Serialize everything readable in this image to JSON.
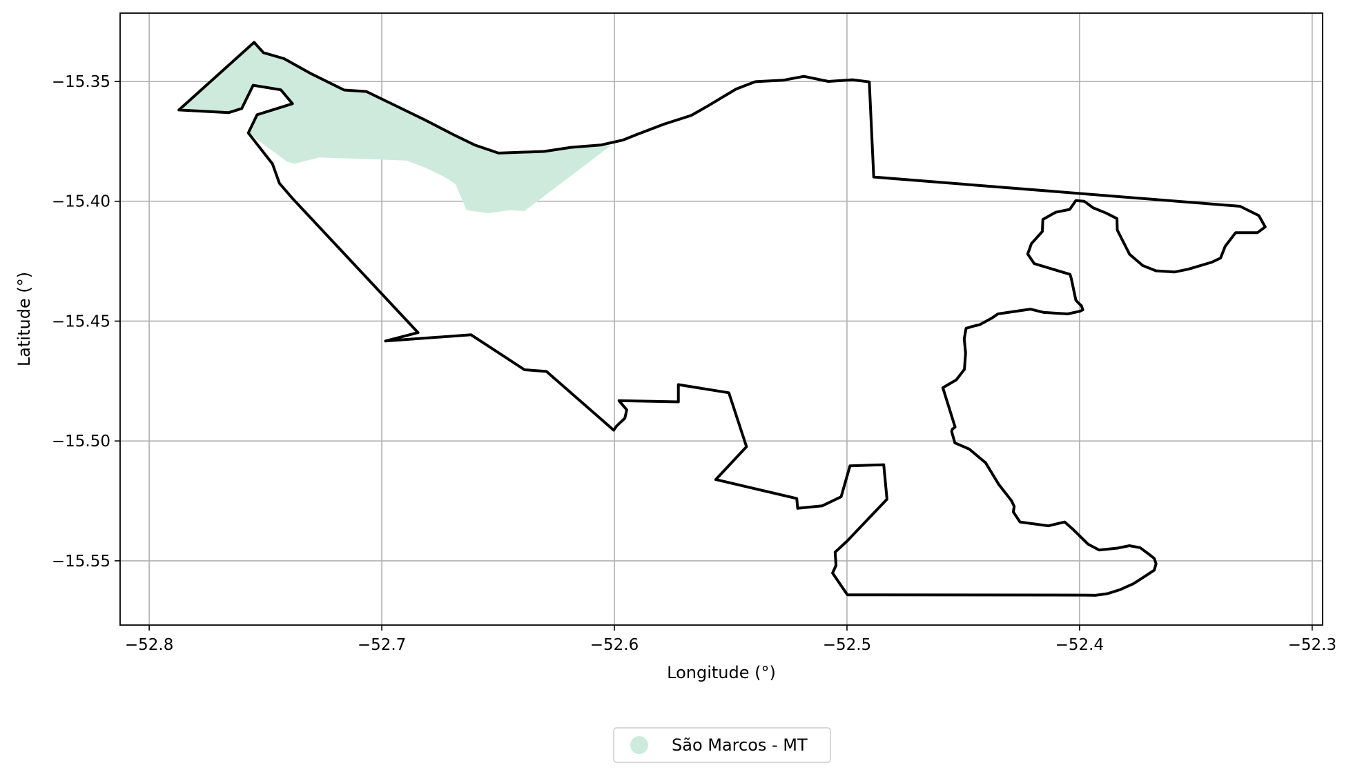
{
  "chart_data": {
    "type": "map",
    "xlabel": "Longitude (°)",
    "ylabel": "Latitude (°)",
    "xlim": [
      -52.8125,
      -52.2955
    ],
    "ylim": [
      -15.5768,
      -15.3215
    ],
    "xticks": [
      -52.8,
      -52.7,
      -52.6,
      -52.5,
      -52.4,
      -52.3
    ],
    "yticks": [
      -15.35,
      -15.4,
      -15.45,
      -15.5,
      -15.55
    ],
    "xtick_labels": [
      "−52.8",
      "−52.7",
      "−52.6",
      "−52.5",
      "−52.4",
      "−52.3"
    ],
    "ytick_labels": [
      "−15.35",
      "−15.40",
      "−15.45",
      "−15.50",
      "−15.55"
    ],
    "grid": true,
    "legend_position": "bottom-center",
    "legend": [
      {
        "label": "São Marcos - MT",
        "color": "#cdeadd",
        "marker": "circle"
      }
    ],
    "filled_region": {
      "name": "São Marcos - MT",
      "color": "#cdeadd",
      "coordinates": [
        [
          -52.7872,
          -15.3619
        ],
        [
          -52.7549,
          -15.3337
        ],
        [
          -52.7509,
          -15.338
        ],
        [
          -52.742,
          -15.3405
        ],
        [
          -52.7309,
          -15.3465
        ],
        [
          -52.7162,
          -15.3536
        ],
        [
          -52.7067,
          -15.3542
        ],
        [
          -52.696,
          -15.3592
        ],
        [
          -52.682,
          -15.3658
        ],
        [
          -52.669,
          -15.3723
        ],
        [
          -52.6601,
          -15.3765
        ],
        [
          -52.6498,
          -15.3799
        ],
        [
          -52.6302,
          -15.3792
        ],
        [
          -52.6187,
          -15.3775
        ],
        [
          -52.6056,
          -15.3765
        ],
        [
          -52.602,
          -15.3771
        ],
        [
          -52.6387,
          -15.4041
        ],
        [
          -52.645,
          -15.4037
        ],
        [
          -52.6543,
          -15.405
        ],
        [
          -52.6635,
          -15.4037
        ],
        [
          -52.6684,
          -15.3927
        ],
        [
          -52.6737,
          -15.3895
        ],
        [
          -52.6815,
          -15.3859
        ],
        [
          -52.6894,
          -15.383
        ],
        [
          -52.7005,
          -15.3826
        ],
        [
          -52.7268,
          -15.3817
        ],
        [
          -52.7374,
          -15.3843
        ],
        [
          -52.7406,
          -15.3836
        ],
        [
          -52.7574,
          -15.3715
        ],
        [
          -52.7536,
          -15.3639
        ],
        [
          -52.7384,
          -15.3593
        ],
        [
          -52.7434,
          -15.3535
        ],
        [
          -52.7553,
          -15.3516
        ],
        [
          -52.7602,
          -15.3613
        ],
        [
          -52.7658,
          -15.363
        ]
      ]
    },
    "boundary": {
      "color": "#000000",
      "coordinates": [
        [
          -52.7872,
          -15.3619
        ],
        [
          -52.7549,
          -15.3337
        ],
        [
          -52.7509,
          -15.338
        ],
        [
          -52.742,
          -15.3405
        ],
        [
          -52.7309,
          -15.3465
        ],
        [
          -52.7162,
          -15.3536
        ],
        [
          -52.7067,
          -15.3542
        ],
        [
          -52.696,
          -15.3592
        ],
        [
          -52.682,
          -15.3658
        ],
        [
          -52.669,
          -15.3723
        ],
        [
          -52.6601,
          -15.3765
        ],
        [
          -52.6498,
          -15.3799
        ],
        [
          -52.6302,
          -15.3792
        ],
        [
          -52.6187,
          -15.3775
        ],
        [
          -52.6056,
          -15.3765
        ],
        [
          -52.5964,
          -15.3745
        ],
        [
          -52.59,
          -15.372
        ],
        [
          -52.5786,
          -15.3678
        ],
        [
          -52.567,
          -15.3642
        ],
        [
          -52.5604,
          -15.3606
        ],
        [
          -52.5477,
          -15.3532
        ],
        [
          -52.5394,
          -15.3501
        ],
        [
          -52.5275,
          -15.3495
        ],
        [
          -52.5185,
          -15.3479
        ],
        [
          -52.508,
          -15.35
        ],
        [
          -52.4976,
          -15.3493
        ],
        [
          -52.4904,
          -15.3502
        ],
        [
          -52.4885,
          -15.3899
        ],
        [
          -52.331,
          -15.4021
        ],
        [
          -52.3229,
          -15.406
        ],
        [
          -52.3202,
          -15.4107
        ],
        [
          -52.3235,
          -15.4131
        ],
        [
          -52.3329,
          -15.4131
        ],
        [
          -52.3374,
          -15.4188
        ],
        [
          -52.3394,
          -15.4237
        ],
        [
          -52.3431,
          -15.4254
        ],
        [
          -52.3531,
          -15.4283
        ],
        [
          -52.3591,
          -15.4295
        ],
        [
          -52.3672,
          -15.429
        ],
        [
          -52.3729,
          -15.4268
        ],
        [
          -52.3785,
          -15.4221
        ],
        [
          -52.3838,
          -15.412
        ],
        [
          -52.3839,
          -15.4072
        ],
        [
          -52.3886,
          -15.4049
        ],
        [
          -52.3942,
          -15.4027
        ],
        [
          -52.398,
          -15.4
        ],
        [
          -52.4016,
          -15.3997
        ],
        [
          -52.4042,
          -15.4034
        ],
        [
          -52.4103,
          -15.4046
        ],
        [
          -52.4158,
          -15.4076
        ],
        [
          -52.416,
          -15.4126
        ],
        [
          -52.4207,
          -15.4177
        ],
        [
          -52.4223,
          -15.422
        ],
        [
          -52.4195,
          -15.426
        ],
        [
          -52.4041,
          -15.4305
        ],
        [
          -52.4036,
          -15.4321
        ],
        [
          -52.4016,
          -15.4412
        ],
        [
          -52.4007,
          -15.4422
        ],
        [
          -52.3992,
          -15.4436
        ],
        [
          -52.3986,
          -15.4453
        ],
        [
          -52.3999,
          -15.4459
        ],
        [
          -52.4051,
          -15.447
        ],
        [
          -52.4153,
          -15.4464
        ],
        [
          -52.4212,
          -15.445
        ],
        [
          -52.4351,
          -15.447
        ],
        [
          -52.4378,
          -15.4488
        ],
        [
          -52.443,
          -15.4515
        ],
        [
          -52.446,
          -15.4522
        ],
        [
          -52.4488,
          -15.453
        ],
        [
          -52.4496,
          -15.4574
        ],
        [
          -52.449,
          -15.4633
        ],
        [
          -52.4495,
          -15.4701
        ],
        [
          -52.453,
          -15.4745
        ],
        [
          -52.4588,
          -15.4778
        ],
        [
          -52.4535,
          -15.4942
        ],
        [
          -52.4547,
          -15.4951
        ],
        [
          -52.455,
          -15.4961
        ],
        [
          -52.4536,
          -15.5008
        ],
        [
          -52.4474,
          -15.5034
        ],
        [
          -52.4404,
          -15.5091
        ],
        [
          -52.4347,
          -15.5182
        ],
        [
          -52.4293,
          -15.5249
        ],
        [
          -52.4281,
          -15.5273
        ],
        [
          -52.4285,
          -15.5296
        ],
        [
          -52.4256,
          -15.5338
        ],
        [
          -52.4134,
          -15.5354
        ],
        [
          -52.4064,
          -15.5338
        ],
        [
          -52.403,
          -15.5367
        ],
        [
          -52.3964,
          -15.543
        ],
        [
          -52.3916,
          -15.5455
        ],
        [
          -52.3837,
          -15.5447
        ],
        [
          -52.3786,
          -15.5437
        ],
        [
          -52.374,
          -15.5445
        ],
        [
          -52.3705,
          -15.547
        ],
        [
          -52.3679,
          -15.549
        ],
        [
          -52.3671,
          -15.5512
        ],
        [
          -52.3679,
          -15.5539
        ],
        [
          -52.3721,
          -15.5566
        ],
        [
          -52.3769,
          -15.5596
        ],
        [
          -52.3825,
          -15.562
        ],
        [
          -52.388,
          -15.5637
        ],
        [
          -52.3932,
          -15.5644
        ],
        [
          -52.398,
          -15.5643
        ],
        [
          -52.4998,
          -15.5642
        ],
        [
          -52.5062,
          -15.5551
        ],
        [
          -52.5047,
          -15.5519
        ],
        [
          -52.5051,
          -15.5464
        ],
        [
          -52.4999,
          -15.5417
        ],
        [
          -52.4828,
          -15.5243
        ],
        [
          -52.4842,
          -15.5099
        ],
        [
          -52.4987,
          -15.5104
        ],
        [
          -52.5025,
          -15.5233
        ],
        [
          -52.5107,
          -15.5271
        ],
        [
          -52.5212,
          -15.5281
        ],
        [
          -52.5216,
          -15.524
        ],
        [
          -52.5564,
          -15.5161
        ],
        [
          -52.5432,
          -15.5024
        ],
        [
          -52.5508,
          -15.4799
        ],
        [
          -52.5725,
          -15.4765
        ],
        [
          -52.5725,
          -15.4837
        ],
        [
          -52.598,
          -15.4832
        ],
        [
          -52.5947,
          -15.487
        ],
        [
          -52.5955,
          -15.4905
        ],
        [
          -52.599,
          -15.4937
        ],
        [
          -52.6003,
          -15.4955
        ],
        [
          -52.6292,
          -15.471
        ],
        [
          -52.6386,
          -15.4703
        ],
        [
          -52.6616,
          -15.4557
        ],
        [
          -52.6984,
          -15.4583
        ],
        [
          -52.6844,
          -15.4548
        ],
        [
          -52.7382,
          -15.399
        ],
        [
          -52.744,
          -15.3925
        ],
        [
          -52.747,
          -15.3844
        ],
        [
          -52.7574,
          -15.3715
        ],
        [
          -52.7536,
          -15.3639
        ],
        [
          -52.7384,
          -15.3593
        ],
        [
          -52.7434,
          -15.3535
        ],
        [
          -52.7553,
          -15.3516
        ],
        [
          -52.7602,
          -15.3613
        ],
        [
          -52.7658,
          -15.363
        ]
      ]
    }
  }
}
